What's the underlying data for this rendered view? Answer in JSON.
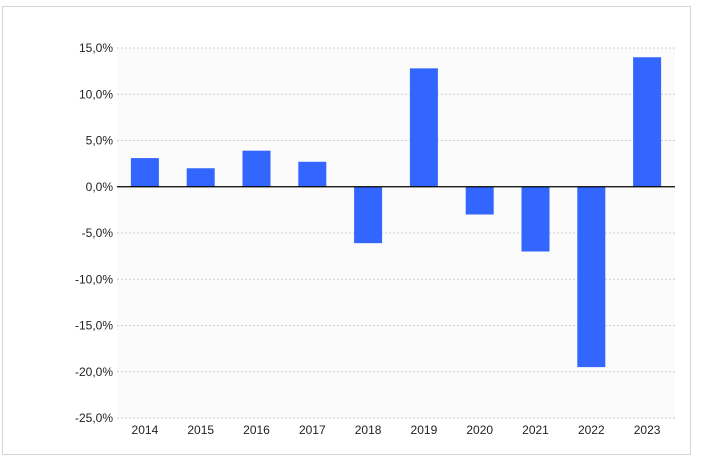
{
  "chart_data": {
    "type": "bar",
    "title": "",
    "xlabel": "",
    "ylabel": "",
    "categories": [
      "2014",
      "2015",
      "2016",
      "2017",
      "2018",
      "2019",
      "2020",
      "2021",
      "2022",
      "2023"
    ],
    "values": [
      3.1,
      2.0,
      3.9,
      2.7,
      -6.1,
      12.8,
      -3.0,
      -7.0,
      -19.5,
      14.0
    ],
    "ylim": [
      -25,
      15
    ],
    "yticks": [
      15,
      10,
      5,
      0,
      -5,
      -10,
      -15,
      -20,
      -25
    ],
    "ytick_labels": [
      "15,0%",
      "10,0%",
      "5,0%",
      "0,0%",
      "-5,0%",
      "-10,0%",
      "-15,0%",
      "-20,0%",
      "-25,0%"
    ],
    "grid": true,
    "legend": "none",
    "colors": {
      "bar": "#3366ff",
      "plot_background": "#fbfbfb",
      "gridline": "#cccccc",
      "zero_line": "#000000",
      "frame_border": "#d4d4d4"
    }
  }
}
